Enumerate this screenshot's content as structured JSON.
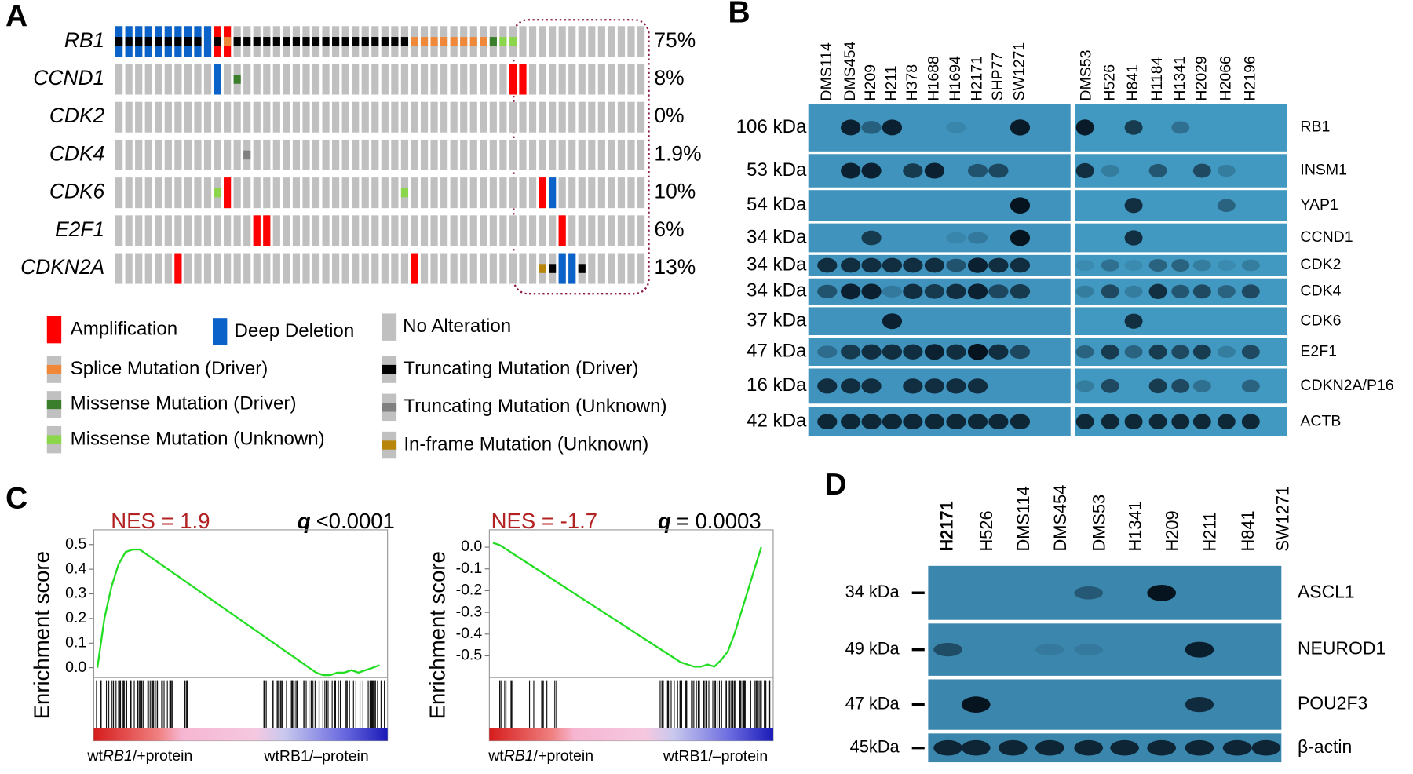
{
  "panels": {
    "A": {
      "letter": "A",
      "genes": [
        {
          "name": "RB1",
          "percent": "75%"
        },
        {
          "name": "CCND1",
          "percent": "8%"
        },
        {
          "name": "CDK2",
          "percent": "0%"
        },
        {
          "name": "CDK4",
          "percent": "1.9%"
        },
        {
          "name": "CDK6",
          "percent": "10%"
        },
        {
          "name": "E2F1",
          "percent": "6%"
        },
        {
          "name": "CDKN2A",
          "percent": "13%"
        }
      ],
      "legend": [
        {
          "label": "Amplification",
          "color": "#ff0000"
        },
        {
          "label": "Deep Deletion",
          "color": "#0b63c9"
        },
        {
          "label": "No Alteration",
          "color": "#c0c0c0"
        },
        {
          "label": "Splice Mutation (Driver)",
          "color": "#f0883a"
        },
        {
          "label": "Missense Mutation (Driver)",
          "color": "#3a7d2a"
        },
        {
          "label": "Missense Mutation (Unknown)",
          "color": "#8bd64a"
        },
        {
          "label": "Truncating Mutation (Driver)",
          "color": "#000000"
        },
        {
          "label": "Truncating Mutation (Unknown)",
          "color": "#808080"
        },
        {
          "label": "In-frame Mutation (Unknown)",
          "color": "#b8860b"
        }
      ]
    },
    "B": {
      "letter": "B",
      "lanes": [
        {
          "name": "DMS114",
          "color": "#000000"
        },
        {
          "name": "DMS454",
          "color": "#000000"
        },
        {
          "name": "H209",
          "color": "#e8201c"
        },
        {
          "name": "H211",
          "color": "#000000"
        },
        {
          "name": "H378",
          "color": "#000000"
        },
        {
          "name": "H1688",
          "color": "#000000"
        },
        {
          "name": "H1694",
          "color": "#e8201c"
        },
        {
          "name": "H2171",
          "color": "#e8201c"
        },
        {
          "name": "SHP77",
          "color": "#000000"
        },
        {
          "name": "SW1271",
          "color": "#000000"
        },
        {
          "name": "DMS53",
          "color": "#000000"
        },
        {
          "name": "H526",
          "color": "#e8201c"
        },
        {
          "name": "H841",
          "color": "#000000"
        },
        {
          "name": "H1184",
          "color": "#e8201c"
        },
        {
          "name": "H1341",
          "color": "#000000"
        },
        {
          "name": "H2029",
          "color": "#e8201c"
        },
        {
          "name": "H2066",
          "color": "#000000"
        },
        {
          "name": "H2196",
          "color": "#e8201c"
        }
      ],
      "rows": [
        {
          "size": "106 kDa",
          "protein": "RB1"
        },
        {
          "size": "53 kDa",
          "protein": "INSM1"
        },
        {
          "size": "54 kDa",
          "protein": "YAP1"
        },
        {
          "size": "34 kDa",
          "protein": "CCND1"
        },
        {
          "size": "34 kDa",
          "protein": "CDK2"
        },
        {
          "size": "34 kDa",
          "protein": "CDK4"
        },
        {
          "size": "37 kDa",
          "protein": "CDK6"
        },
        {
          "size": "47 kDa",
          "protein": "E2F1"
        },
        {
          "size": "16 kDa",
          "protein": "CDKN2A/P16"
        },
        {
          "size": "42 kDa",
          "protein": "ACTB"
        }
      ]
    },
    "C": {
      "letter": "C",
      "plots": [
        {
          "nes": "NES = 1.9",
          "q_symbol": "q",
          "q_value": "<0.0001",
          "ylabel": "Enrichment score",
          "ylim": [
            -0.04,
            0.56
          ],
          "yticks": [
            {
              "value": 0,
              "label": "0.0"
            },
            {
              "value": 0.1,
              "label": "0.1"
            },
            {
              "value": 0.2,
              "label": "0.2"
            },
            {
              "value": 0.3,
              "label": "0.3"
            },
            {
              "value": 0.4,
              "label": "0.4"
            },
            {
              "value": 0.5,
              "label": "0.5"
            }
          ],
          "values": [
            0.0,
            0.2,
            0.33,
            0.42,
            0.47,
            0.48,
            0.48,
            0.46,
            0.44,
            0.42,
            0.4,
            0.38,
            0.36,
            0.34,
            0.32,
            0.3,
            0.28,
            0.26,
            0.24,
            0.22,
            0.2,
            0.18,
            0.16,
            0.14,
            0.12,
            0.1,
            0.08,
            0.06,
            0.04,
            0.02,
            0.0,
            -0.02,
            -0.03,
            -0.03,
            -0.02,
            -0.02,
            -0.01,
            -0.02,
            -0.01,
            0.0,
            0.01
          ],
          "left_label": {
            "pre": "wt",
            "gene": "RB1",
            "post": "/+protein"
          },
          "right_label": "wtRB1/–protein"
        },
        {
          "nes": "NES = -1.7",
          "q_symbol": "q",
          "q_value": "= 0.0003",
          "ylabel": "Enrichment score",
          "ylim": [
            -0.6,
            0.08
          ],
          "yticks": [
            {
              "value": 0,
              "label": "0.0"
            },
            -0.1,
            -0.2,
            -0.3,
            -0.4,
            -0.5
          ],
          "values": [
            0.02,
            0.01,
            -0.01,
            -0.03,
            -0.05,
            -0.07,
            -0.09,
            -0.11,
            -0.13,
            -0.15,
            -0.17,
            -0.19,
            -0.21,
            -0.23,
            -0.25,
            -0.27,
            -0.29,
            -0.31,
            -0.33,
            -0.35,
            -0.37,
            -0.39,
            -0.41,
            -0.43,
            -0.45,
            -0.47,
            -0.49,
            -0.51,
            -0.53,
            -0.54,
            -0.55,
            -0.55,
            -0.54,
            -0.55,
            -0.52,
            -0.48,
            -0.4,
            -0.3,
            -0.2,
            -0.1,
            0.0
          ],
          "left_label": {
            "pre": "wt",
            "gene": "RB1",
            "post": "/+protein"
          },
          "right_label": "wtRB1/–protein"
        }
      ]
    },
    "D": {
      "letter": "D",
      "lanes": [
        {
          "name": "H2171",
          "color": "#e8201c",
          "bold": true
        },
        {
          "name": "H526",
          "color": "#e8201c"
        },
        {
          "name": "DMS114",
          "color": "#000000"
        },
        {
          "name": "DMS454",
          "color": "#000000"
        },
        {
          "name": "DMS53",
          "color": "#000000"
        },
        {
          "name": "H1341",
          "color": "#000000"
        },
        {
          "name": "H209",
          "color": "#e8201c"
        },
        {
          "name": "H211",
          "color": "#000000"
        },
        {
          "name": "H841",
          "color": "#000000"
        },
        {
          "name": "SW1271",
          "color": "#000000"
        }
      ],
      "rows": [
        {
          "size": "34 kDa",
          "protein": "ASCL1"
        },
        {
          "size": "49 kDa",
          "protein": "NEUROD1"
        },
        {
          "size": "47 kDa",
          "protein": "POU2F3"
        },
        {
          "size": "45kDa",
          "protein": "β-actin"
        }
      ]
    }
  }
}
